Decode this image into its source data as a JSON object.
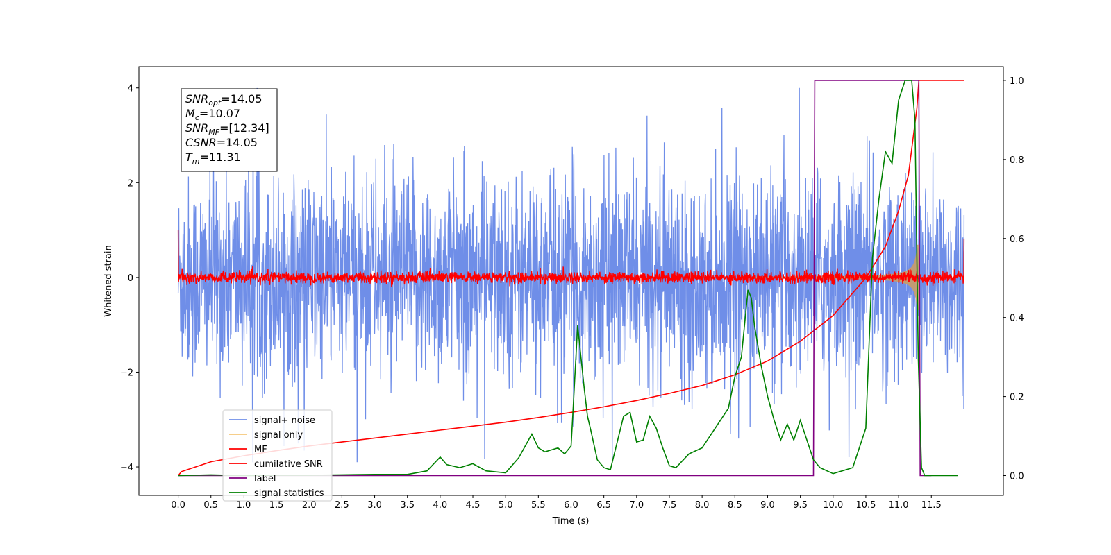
{
  "chart_data": {
    "type": "line",
    "xlabel": "Time (s)",
    "ylabel": "Whitened strain",
    "ylabel_right": "",
    "xlim": [
      -0.6,
      12.6
    ],
    "ylim": [
      -4.6,
      4.45
    ],
    "ylim_right": [
      -0.05,
      1.035
    ],
    "x_ticks": [
      "0.0",
      "0.5",
      "1.0",
      "1.5",
      "2.0",
      "2.5",
      "3.0",
      "3.5",
      "4.0",
      "4.5",
      "5.0",
      "5.5",
      "6.0",
      "6.5",
      "7.0",
      "7.5",
      "8.0",
      "8.5",
      "9.0",
      "9.5",
      "10.0",
      "10.5",
      "11.0",
      "11.5"
    ],
    "y_ticks_left": [
      "−4",
      "−2",
      "0",
      "2",
      "4"
    ],
    "y_ticks_right": [
      "0.0",
      "0.2",
      "0.4",
      "0.6",
      "0.8",
      "1.0"
    ],
    "legend_position": "lower-left",
    "grid": false,
    "info_box": [
      {
        "main": "SNR",
        "sub": "opt",
        "value": "=14.05"
      },
      {
        "main": "M",
        "sub": "c",
        "value": "=10.07"
      },
      {
        "main": "SNR",
        "sub": "MF",
        "value": "=[12.34]"
      },
      {
        "main": "CSNR",
        "sub": "",
        "value": "=14.05"
      },
      {
        "main": "T",
        "sub": "m",
        "value": "=11.31"
      }
    ],
    "series": [
      {
        "name": "signal+ noise",
        "color": "#6f8ee8",
        "axis": "left",
        "kind": "noise",
        "x_range": [
          0,
          12.0
        ],
        "amplitude_typical": 1.3,
        "peak": 4.0
      },
      {
        "name": "signal only",
        "color": "#f5c77a",
        "axis": "left",
        "kind": "chirp",
        "x_range": [
          0,
          11.31
        ],
        "peak": 1.0
      },
      {
        "name": "MF",
        "color": "#ff0000",
        "axis": "left",
        "kind": "noise",
        "x_range": [
          0,
          12.0
        ],
        "amplitude_typical": 0.1
      },
      {
        "name": "cumilative SNR",
        "color": "#ff0000",
        "axis": "right",
        "x": [
          0.0,
          0.05,
          0.5,
          1.0,
          1.5,
          2.0,
          2.5,
          3.0,
          3.5,
          4.0,
          4.5,
          5.0,
          5.5,
          6.0,
          6.5,
          7.0,
          7.5,
          8.0,
          8.5,
          9.0,
          9.5,
          10.0,
          10.5,
          10.8,
          11.0,
          11.15,
          11.28,
          11.31,
          12.0
        ],
        "y": [
          0.0,
          0.01,
          0.035,
          0.05,
          0.063,
          0.075,
          0.085,
          0.095,
          0.105,
          0.115,
          0.125,
          0.135,
          0.147,
          0.16,
          0.174,
          0.19,
          0.208,
          0.228,
          0.255,
          0.29,
          0.34,
          0.405,
          0.5,
          0.58,
          0.67,
          0.76,
          0.93,
          1.0,
          1.0
        ]
      },
      {
        "name": "label",
        "color": "#800080",
        "axis": "right",
        "x": [
          0.0,
          9.7,
          9.72,
          11.31,
          11.33,
          11.5
        ],
        "y": [
          0.0,
          0.0,
          1.0,
          1.0,
          0.0,
          0.0
        ]
      },
      {
        "name": "signal statistics",
        "color": "#008000",
        "axis": "right",
        "x": [
          0.0,
          0.5,
          1.0,
          1.5,
          2.0,
          2.5,
          3.0,
          3.5,
          3.8,
          4.0,
          4.1,
          4.3,
          4.5,
          4.7,
          5.0,
          5.2,
          5.4,
          5.5,
          5.6,
          5.8,
          5.9,
          6.0,
          6.1,
          6.2,
          6.25,
          6.3,
          6.4,
          6.5,
          6.6,
          6.8,
          6.9,
          7.0,
          7.1,
          7.2,
          7.3,
          7.4,
          7.5,
          7.6,
          7.8,
          8.0,
          8.2,
          8.4,
          8.5,
          8.6,
          8.7,
          8.75,
          8.8,
          8.9,
          9.0,
          9.1,
          9.2,
          9.3,
          9.4,
          9.5,
          9.6,
          9.7,
          9.8,
          10.0,
          10.3,
          10.5,
          10.6,
          10.7,
          10.8,
          10.9,
          11.0,
          11.1,
          11.2,
          11.25,
          11.3,
          11.35,
          11.4,
          11.5,
          11.9
        ],
        "y": [
          0.0,
          0.002,
          0.0,
          0.001,
          0.001,
          0.002,
          0.003,
          0.003,
          0.012,
          0.047,
          0.028,
          0.02,
          0.03,
          0.012,
          0.007,
          0.045,
          0.105,
          0.07,
          0.06,
          0.07,
          0.055,
          0.075,
          0.38,
          0.22,
          0.15,
          0.115,
          0.04,
          0.02,
          0.015,
          0.15,
          0.16,
          0.085,
          0.09,
          0.15,
          0.12,
          0.07,
          0.025,
          0.02,
          0.055,
          0.07,
          0.12,
          0.17,
          0.25,
          0.3,
          0.47,
          0.45,
          0.38,
          0.28,
          0.2,
          0.14,
          0.09,
          0.13,
          0.09,
          0.14,
          0.09,
          0.04,
          0.02,
          0.005,
          0.02,
          0.12,
          0.55,
          0.7,
          0.82,
          0.79,
          0.95,
          1.0,
          1.0,
          0.9,
          0.3,
          0.02,
          0.0,
          0.0,
          0.0
        ]
      }
    ]
  }
}
